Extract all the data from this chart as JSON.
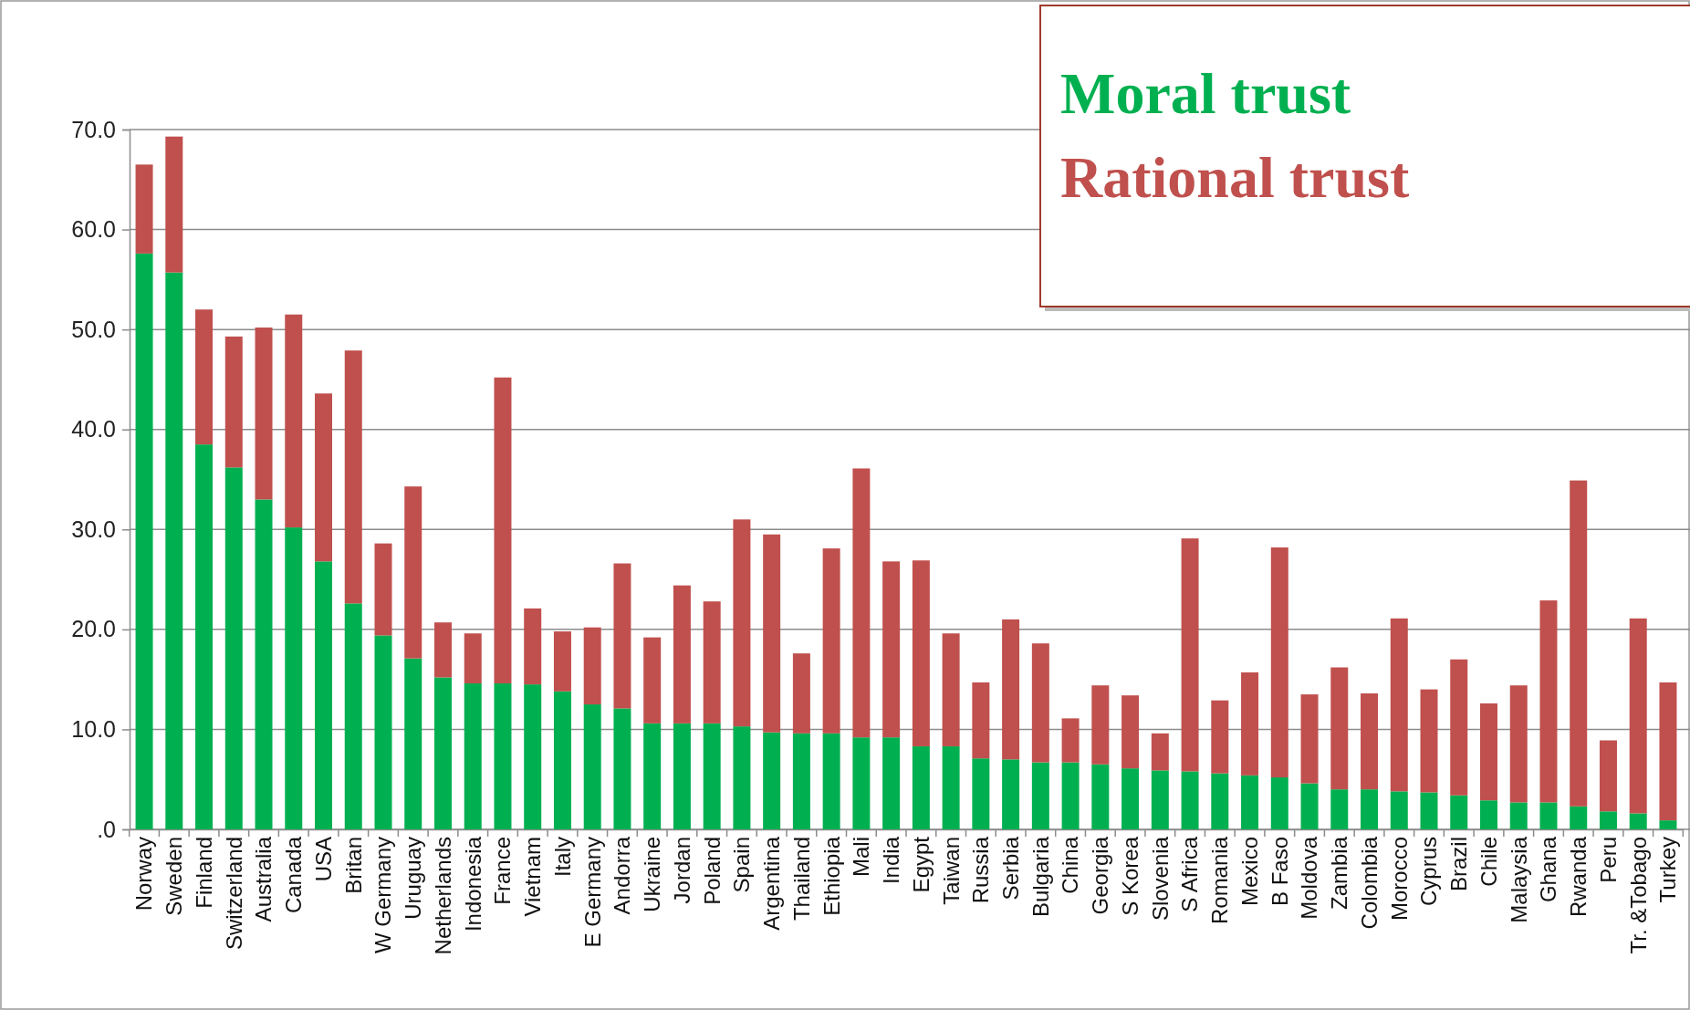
{
  "chart_data": {
    "type": "bar",
    "stacked": true,
    "grid": "y",
    "legend": "top right",
    "categories": [
      "Norway",
      "Sweden",
      "Finland",
      "Switzerland",
      "Australia",
      "Canada",
      "USA",
      "Britan",
      "W Germany",
      "Uruguay",
      "Netherlands",
      "Indonesia",
      "France",
      "Vietnam",
      "Italy",
      "E Germany",
      "Andorra",
      "Ukraine",
      "Jordan",
      "Poland",
      "Spain",
      "Argentina",
      "Thailand",
      "Ethiopia",
      "Mali",
      "India",
      "Egypt",
      "Taiwan",
      "Russia",
      "Serbia",
      "Bulgaria",
      "China",
      "Georgia",
      "S Korea",
      "Slovenia",
      "S Africa",
      "Romania",
      "Mexico",
      "B Faso",
      "Moldova",
      "Zambia",
      "Colombia",
      "Morocco",
      "Cyprus",
      "Brazil",
      "Chile",
      "Malaysia",
      "Ghana",
      "Rwanda",
      "Peru",
      "Tr. &Tobago",
      "Turkey"
    ],
    "series": [
      {
        "name": "Moral trust",
        "color": "#00b050",
        "values": [
          57.6,
          55.7,
          38.5,
          36.2,
          33.0,
          30.2,
          26.8,
          22.6,
          19.4,
          17.1,
          15.2,
          14.6,
          14.6,
          14.5,
          13.8,
          12.5,
          12.1,
          10.6,
          10.6,
          10.6,
          10.3,
          9.7,
          9.6,
          9.6,
          9.2,
          9.2,
          8.3,
          8.3,
          7.1,
          7.0,
          6.7,
          6.7,
          6.5,
          6.1,
          5.9,
          5.8,
          5.6,
          5.4,
          5.2,
          4.6,
          4.0,
          4.0,
          3.8,
          3.7,
          3.4,
          2.9,
          2.7,
          2.7,
          2.3,
          1.8,
          1.6,
          0.9
        ]
      },
      {
        "name": "Rational trust",
        "color": "#c0504d",
        "values": [
          8.9,
          13.6,
          13.5,
          13.1,
          17.2,
          21.3,
          16.8,
          25.3,
          9.2,
          17.2,
          5.5,
          5.0,
          30.6,
          7.6,
          6.0,
          7.7,
          14.5,
          8.6,
          13.8,
          12.2,
          20.7,
          19.8,
          8.0,
          18.5,
          26.9,
          17.6,
          18.6,
          11.3,
          7.6,
          14.0,
          11.9,
          4.4,
          7.9,
          7.3,
          3.7,
          23.3,
          7.3,
          10.3,
          23.0,
          8.9,
          12.2,
          9.6,
          17.3,
          10.3,
          13.6,
          9.7,
          11.7,
          20.2,
          32.6,
          7.1,
          19.5,
          13.8
        ]
      }
    ],
    "ylim": [
      0,
      70
    ],
    "yticks": [
      {
        "value": 0,
        "label": ".0"
      },
      {
        "value": 10,
        "label": "10.0"
      },
      {
        "value": 20,
        "label": "20.0"
      },
      {
        "value": 30,
        "label": "30.0"
      },
      {
        "value": 40,
        "label": "40.0"
      },
      {
        "value": 50,
        "label": "50.0"
      },
      {
        "value": 60,
        "label": "60.0"
      },
      {
        "value": 70,
        "label": "70.0"
      }
    ]
  }
}
